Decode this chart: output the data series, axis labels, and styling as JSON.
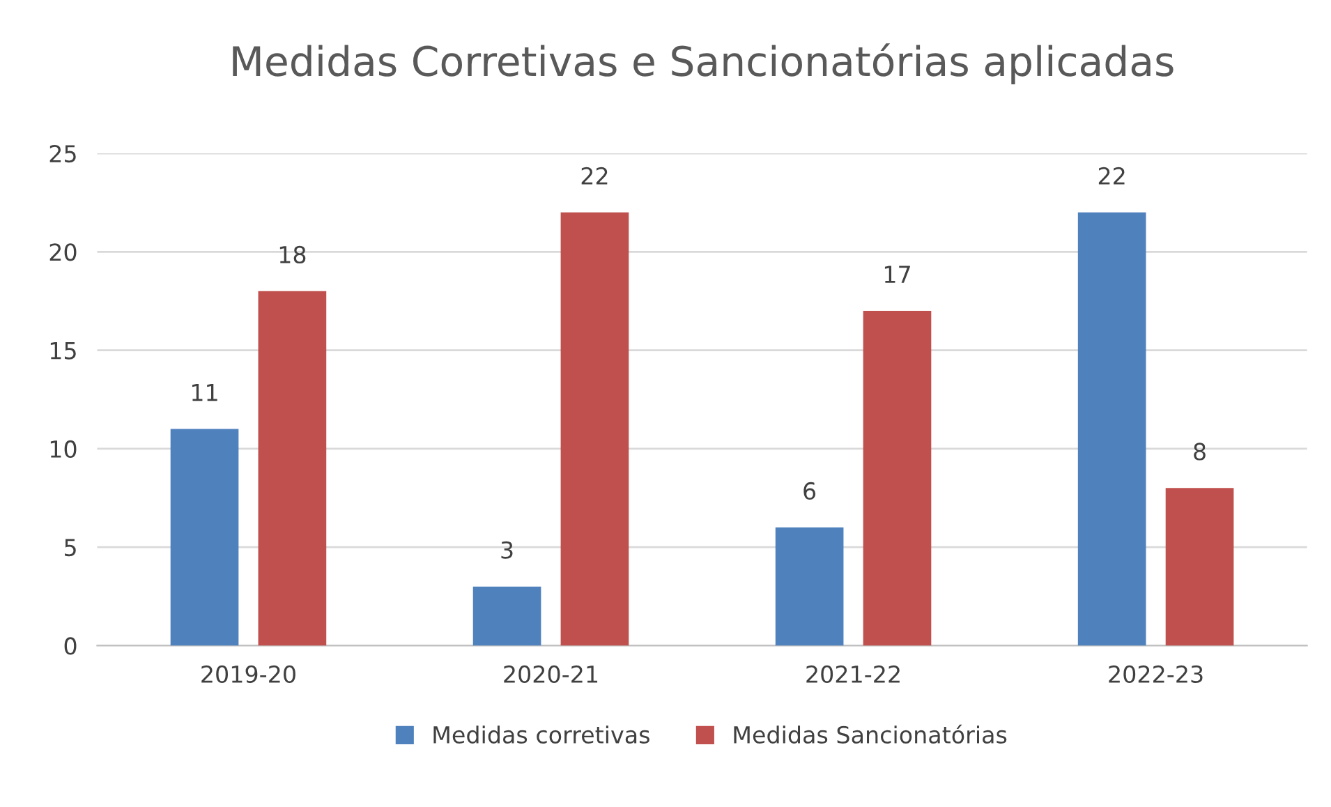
{
  "chart_data": {
    "type": "bar",
    "title": "Medidas Corretivas e Sancionatórias aplicadas",
    "categories": [
      "2019-20",
      "2020-21",
      "2021-22",
      "2022-23"
    ],
    "series": [
      {
        "name": "Medidas corretivas",
        "color": "#4f81bd",
        "values": [
          11,
          3,
          6,
          22
        ]
      },
      {
        "name": "Medidas Sancionatórias",
        "color": "#c0504d",
        "values": [
          18,
          22,
          17,
          8
        ]
      }
    ],
    "ylim": [
      0,
      25
    ],
    "yticks": [
      0,
      5,
      10,
      15,
      20,
      25
    ],
    "grid": "y",
    "legend": "bottom",
    "data_labels": true
  }
}
